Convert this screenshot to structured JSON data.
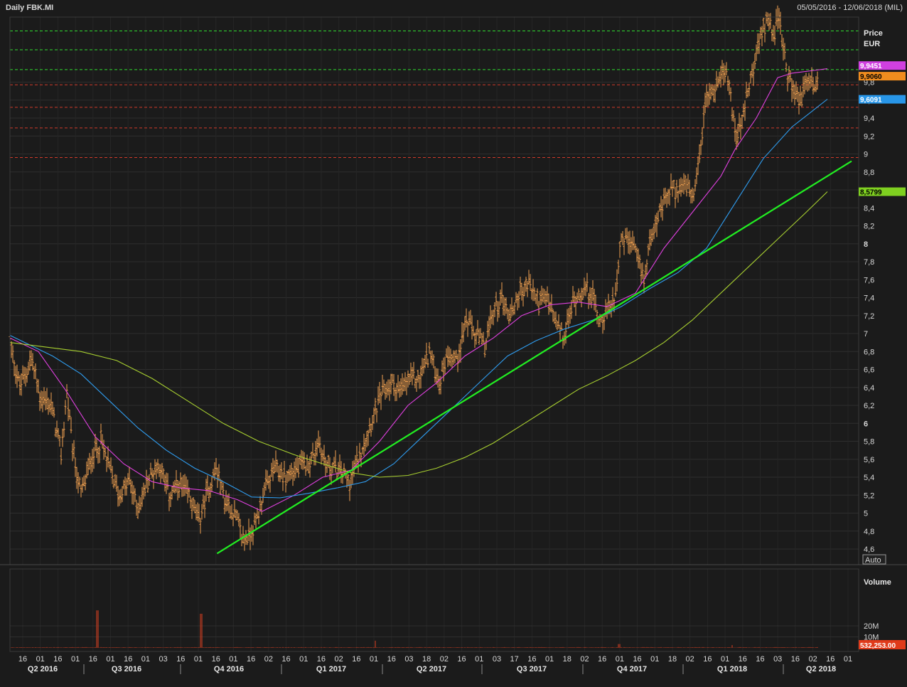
{
  "header": {
    "title": "Daily FBK.MI",
    "date_range": "05/05/2016 - 12/06/2018 (MIL)"
  },
  "price_axis": {
    "title_line1": "Price",
    "title_line2": "EUR",
    "auto_label": "Auto"
  },
  "volume_axis": {
    "title": "Volume",
    "ticks": [
      "20M",
      "10M"
    ],
    "last_value": "532,253.00"
  },
  "colors": {
    "background": "#1b1b1b",
    "candles": "#f0a050",
    "ma_short": "#e040e0",
    "ma_mid": "#2f9df0",
    "ma_long": "#a8d030",
    "trendline": "#22ee22",
    "support_dashed": "#d03a2a",
    "resistance_dashed": "#30dd30",
    "volume": "#e04020"
  },
  "chart_data": {
    "type": "line",
    "title": "Daily FBK.MI",
    "ylabel": "Price EUR",
    "ylim": [
      4.45,
      11.1
    ],
    "y_ticks": [
      "4,6",
      "4,8",
      "5",
      "5,2",
      "5,4",
      "5,6",
      "5,8",
      "6",
      "6,2",
      "6,4",
      "6,6",
      "6,8",
      "7",
      "7,2",
      "7,4",
      "7,6",
      "7,8",
      "8",
      "8,2",
      "8,4",
      "8,6",
      "8,8",
      "9",
      "9,2",
      "9,4",
      "9,6",
      "9,8"
    ],
    "x_day_ticks": [
      "16",
      "01",
      "16",
      "01",
      "16",
      "01",
      "16",
      "01",
      "03",
      "16",
      "01",
      "16",
      "01",
      "16",
      "02",
      "16",
      "01",
      "16",
      "02",
      "16",
      "01",
      "16",
      "03",
      "18",
      "02",
      "16",
      "01",
      "03",
      "17",
      "16",
      "01",
      "18",
      "02",
      "16",
      "01",
      "16",
      "01",
      "18",
      "02",
      "16",
      "01",
      "16",
      "16",
      "03",
      "16",
      "02",
      "16",
      "01"
    ],
    "x_quarters": [
      "Q2 2016",
      "Q3 2016",
      "Q4 2016",
      "Q1 2017",
      "Q2 2017",
      "Q3 2017",
      "Q4 2017",
      "Q1 2018",
      "Q2 2018"
    ],
    "last_price_tags": [
      {
        "label": "9,9451",
        "value": 9.9451,
        "color": "#d040e0",
        "text_color": "#ffffff"
      },
      {
        "label": "9,9060",
        "value": 9.906,
        "color": "#f08c1e",
        "text_color": "#000000"
      },
      {
        "label": "9,6091",
        "value": 9.6091,
        "color": "#2896e8",
        "text_color": "#ffffff"
      },
      {
        "label": "8,5799",
        "value": 8.5799,
        "color": "#7fd020",
        "text_color": "#000000"
      }
    ],
    "resistance_levels": [
      10.37,
      10.16,
      9.94
    ],
    "support_levels": [
      9.77,
      9.52,
      9.29,
      8.96
    ],
    "trendline": {
      "from": [
        "2016-11-10",
        4.55
      ],
      "to": [
        "2018-06-12",
        8.92
      ]
    },
    "price_path": [
      [
        0,
        6.9
      ],
      [
        14,
        6.4
      ],
      [
        30,
        6.72
      ],
      [
        42,
        6.3
      ],
      [
        58,
        6.2
      ],
      [
        72,
        5.65
      ],
      [
        80,
        6.35
      ],
      [
        88,
        5.7
      ],
      [
        100,
        5.2
      ],
      [
        116,
        5.65
      ],
      [
        128,
        5.8
      ],
      [
        140,
        5.5
      ],
      [
        154,
        5.2
      ],
      [
        168,
        5.35
      ],
      [
        180,
        5.05
      ],
      [
        196,
        5.4
      ],
      [
        210,
        5.55
      ],
      [
        224,
        5.2
      ],
      [
        238,
        5.3
      ],
      [
        252,
        5.2
      ],
      [
        266,
        4.9
      ],
      [
        278,
        5.25
      ],
      [
        290,
        5.5
      ],
      [
        302,
        5.15
      ],
      [
        316,
        5.0
      ],
      [
        328,
        4.7
      ],
      [
        336,
        4.75
      ],
      [
        346,
        4.9
      ],
      [
        356,
        5.2
      ],
      [
        372,
        5.5
      ],
      [
        388,
        5.4
      ],
      [
        404,
        5.5
      ],
      [
        418,
        5.55
      ],
      [
        428,
        5.65
      ],
      [
        434,
        5.8
      ],
      [
        444,
        5.55
      ],
      [
        456,
        5.5
      ],
      [
        468,
        5.45
      ],
      [
        478,
        5.35
      ],
      [
        490,
        5.6
      ],
      [
        500,
        5.85
      ],
      [
        512,
        6.1
      ],
      [
        524,
        6.35
      ],
      [
        538,
        6.45
      ],
      [
        550,
        6.35
      ],
      [
        562,
        6.5
      ],
      [
        576,
        6.5
      ],
      [
        590,
        6.8
      ],
      [
        604,
        6.45
      ],
      [
        616,
        6.8
      ],
      [
        628,
        6.7
      ],
      [
        642,
        7.15
      ],
      [
        654,
        7.0
      ],
      [
        668,
        6.85
      ],
      [
        680,
        7.25
      ],
      [
        692,
        7.4
      ],
      [
        704,
        7.2
      ],
      [
        716,
        7.45
      ],
      [
        730,
        7.55
      ],
      [
        744,
        7.35
      ],
      [
        756,
        7.4
      ],
      [
        768,
        7.1
      ],
      [
        780,
        6.95
      ],
      [
        792,
        7.35
      ],
      [
        806,
        7.5
      ],
      [
        818,
        7.45
      ],
      [
        830,
        7.15
      ],
      [
        842,
        7.25
      ],
      [
        852,
        7.45
      ],
      [
        858,
        8.0
      ],
      [
        870,
        8.05
      ],
      [
        882,
        7.85
      ],
      [
        892,
        7.6
      ],
      [
        904,
        8.2
      ],
      [
        916,
        8.35
      ],
      [
        928,
        8.6
      ],
      [
        940,
        8.6
      ],
      [
        952,
        8.65
      ],
      [
        962,
        8.45
      ],
      [
        972,
        9.1
      ],
      [
        980,
        9.65
      ],
      [
        992,
        9.7
      ],
      [
        1002,
        10.0
      ],
      [
        1012,
        9.75
      ],
      [
        1022,
        9.15
      ],
      [
        1032,
        9.45
      ],
      [
        1044,
        9.9
      ],
      [
        1056,
        10.3
      ],
      [
        1066,
        10.55
      ],
      [
        1074,
        10.35
      ],
      [
        1082,
        10.5
      ],
      [
        1092,
        9.95
      ],
      [
        1102,
        9.7
      ],
      [
        1112,
        9.6
      ],
      [
        1122,
        9.85
      ],
      [
        1134,
        9.75
      ],
      [
        1148,
        9.95
      ]
    ],
    "series": [
      {
        "name": "",
        "color": "#e040e0",
        "values": [
          [
            0,
            6.95
          ],
          [
            40,
            6.8
          ],
          [
            80,
            6.35
          ],
          [
            120,
            5.85
          ],
          [
            160,
            5.55
          ],
          [
            200,
            5.35
          ],
          [
            240,
            5.28
          ],
          [
            280,
            5.25
          ],
          [
            320,
            5.15
          ],
          [
            355,
            5.02
          ],
          [
            400,
            5.2
          ],
          [
            440,
            5.4
          ],
          [
            480,
            5.48
          ],
          [
            520,
            5.8
          ],
          [
            560,
            6.2
          ],
          [
            600,
            6.45
          ],
          [
            640,
            6.75
          ],
          [
            680,
            6.95
          ],
          [
            720,
            7.2
          ],
          [
            760,
            7.32
          ],
          [
            800,
            7.35
          ],
          [
            840,
            7.3
          ],
          [
            880,
            7.45
          ],
          [
            920,
            7.95
          ],
          [
            960,
            8.35
          ],
          [
            1000,
            8.75
          ],
          [
            1020,
            9.05
          ],
          [
            1050,
            9.4
          ],
          [
            1080,
            9.85
          ],
          [
            1100,
            9.9
          ],
          [
            1150,
            9.95
          ]
        ]
      },
      {
        "name": "",
        "color": "#2f9df0",
        "values": [
          [
            0,
            6.98
          ],
          [
            60,
            6.75
          ],
          [
            100,
            6.55
          ],
          [
            140,
            6.25
          ],
          [
            180,
            5.95
          ],
          [
            220,
            5.7
          ],
          [
            260,
            5.5
          ],
          [
            300,
            5.35
          ],
          [
            340,
            5.18
          ],
          [
            380,
            5.17
          ],
          [
            420,
            5.22
          ],
          [
            460,
            5.28
          ],
          [
            500,
            5.35
          ],
          [
            540,
            5.55
          ],
          [
            580,
            5.85
          ],
          [
            620,
            6.15
          ],
          [
            660,
            6.45
          ],
          [
            700,
            6.75
          ],
          [
            740,
            6.92
          ],
          [
            780,
            7.05
          ],
          [
            820,
            7.15
          ],
          [
            860,
            7.3
          ],
          [
            900,
            7.5
          ],
          [
            940,
            7.68
          ],
          [
            980,
            7.95
          ],
          [
            1020,
            8.45
          ],
          [
            1060,
            8.95
          ],
          [
            1100,
            9.3
          ],
          [
            1150,
            9.61
          ]
        ]
      },
      {
        "name": "",
        "color": "#a8d030",
        "values": [
          [
            0,
            6.9
          ],
          [
            50,
            6.85
          ],
          [
            100,
            6.8
          ],
          [
            150,
            6.7
          ],
          [
            200,
            6.5
          ],
          [
            250,
            6.25
          ],
          [
            300,
            6.0
          ],
          [
            350,
            5.8
          ],
          [
            400,
            5.65
          ],
          [
            440,
            5.55
          ],
          [
            480,
            5.45
          ],
          [
            520,
            5.4
          ],
          [
            560,
            5.42
          ],
          [
            600,
            5.5
          ],
          [
            640,
            5.62
          ],
          [
            680,
            5.78
          ],
          [
            720,
            5.98
          ],
          [
            760,
            6.18
          ],
          [
            800,
            6.38
          ],
          [
            840,
            6.53
          ],
          [
            880,
            6.7
          ],
          [
            920,
            6.9
          ],
          [
            960,
            7.15
          ],
          [
            1000,
            7.45
          ],
          [
            1040,
            7.75
          ],
          [
            1080,
            8.05
          ],
          [
            1120,
            8.35
          ],
          [
            1150,
            8.58
          ]
        ]
      }
    ],
    "volume": {
      "base_millions": 0.5,
      "spikes_millions": [
        [
          123,
          34
        ],
        [
          269,
          31
        ],
        [
          514,
          6.5
        ],
        [
          857,
          3.5
        ],
        [
          1016,
          2.5
        ]
      ]
    }
  }
}
